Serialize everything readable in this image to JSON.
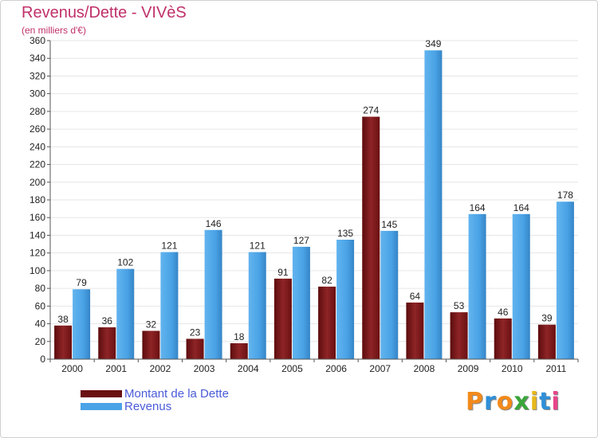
{
  "title": "Revenus/Dette - VIVèS",
  "subtitle": "(en milliers d'€)",
  "brand": {
    "text": "Proxiti",
    "letter_colors": [
      "#f28a1b",
      "#2f8fd8",
      "#f28a1b",
      "#3aa63a",
      "#e8b81a",
      "#2f8fd8",
      "#e8458b"
    ]
  },
  "colors": {
    "dette": "#7a1416",
    "dette_light": "#9c2c2e",
    "revenus": "#4aa3e6",
    "revenus_dark": "#3a88c8",
    "axis_text": "#222222",
    "grid": "#e6e6e6"
  },
  "chart_data": {
    "type": "bar",
    "title": "Revenus/Dette - VIVèS",
    "subtitle": "(en milliers d'€)",
    "categories": [
      "2000",
      "2001",
      "2002",
      "2003",
      "2004",
      "2005",
      "2006",
      "2007",
      "2008",
      "2009",
      "2010",
      "2011"
    ],
    "series": [
      {
        "name": "Montant de la Dette",
        "values": [
          38,
          36,
          32,
          23,
          18,
          91,
          82,
          274,
          64,
          53,
          46,
          39
        ]
      },
      {
        "name": "Revenus",
        "values": [
          79,
          102,
          121,
          146,
          121,
          127,
          135,
          145,
          349,
          164,
          164,
          178
        ]
      }
    ],
    "ylim": [
      0,
      360
    ],
    "yticks": [
      0,
      20,
      40,
      60,
      80,
      100,
      120,
      140,
      160,
      180,
      200,
      220,
      240,
      260,
      280,
      300,
      320,
      340,
      360
    ],
    "grid": true,
    "legend": "bottom-left"
  }
}
